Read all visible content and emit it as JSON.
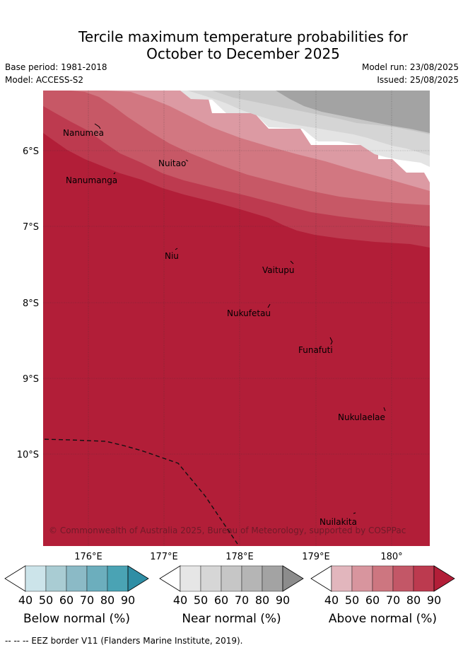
{
  "title": {
    "line1": "Tercile maximum temperature probabilities for",
    "line2": "October to December 2025"
  },
  "meta": {
    "base_period": "Base period: 1981-2018",
    "model": "Model: ACCESS-S2",
    "model_run": "Model run: 23/08/2025",
    "issued": "Issued: 25/08/2025"
  },
  "map": {
    "lat_labels": [
      "6°S",
      "7°S",
      "8°S",
      "9°S",
      "10°S"
    ],
    "lon_labels": [
      "176°E",
      "177°E",
      "178°E",
      "179°E",
      "180°"
    ],
    "places": [
      "Nanumea",
      "Nuitao",
      "Nanumanga",
      "Niu",
      "Vaitupu",
      "Nukufetau",
      "Funafuti",
      "Nukulaelae",
      "Nuilakita"
    ],
    "copyright": "© Commonwealth of Australia 2025, Bureau of Meteorology, supported by COSPPac",
    "region_colors": {
      "above_90": "#b21e38",
      "above_80": "#bd3a4f",
      "above_70": "#c75866",
      "above_60": "#d27781",
      "above_50": "#dc9aa3",
      "near_40": "#e4e4e4",
      "near_50": "#d5d5d5",
      "near_60": "#c6c6c6",
      "near_70": "#b5b5b5",
      "near_80": "#a3a3a3",
      "no_signal": "#ffffff"
    }
  },
  "legends": [
    {
      "title": "Below normal (%)",
      "ticks": [
        "40",
        "50",
        "60",
        "70",
        "80",
        "90"
      ],
      "colors": [
        "#cce4ea",
        "#a9ccd3",
        "#8bbac6",
        "#6caebd",
        "#4aa3b4"
      ],
      "extend_color": "#2f8ea5"
    },
    {
      "title": "Near normal (%)",
      "ticks": [
        "40",
        "50",
        "60",
        "70",
        "80",
        "90"
      ],
      "colors": [
        "#e6e6e6",
        "#d6d6d6",
        "#c6c6c6",
        "#b5b5b5",
        "#a3a3a3"
      ],
      "extend_color": "#8c8c8c"
    },
    {
      "title": "Above normal (%)",
      "ticks": [
        "40",
        "50",
        "60",
        "70",
        "80",
        "90"
      ],
      "colors": [
        "#e2b6bd",
        "#d8959e",
        "#cd7680",
        "#c35767",
        "#bc3a4f"
      ],
      "extend_color": "#b21e38"
    }
  ],
  "footnote": "--  --  -- EEZ border V11 (Flanders Marine Institute, 2019)."
}
